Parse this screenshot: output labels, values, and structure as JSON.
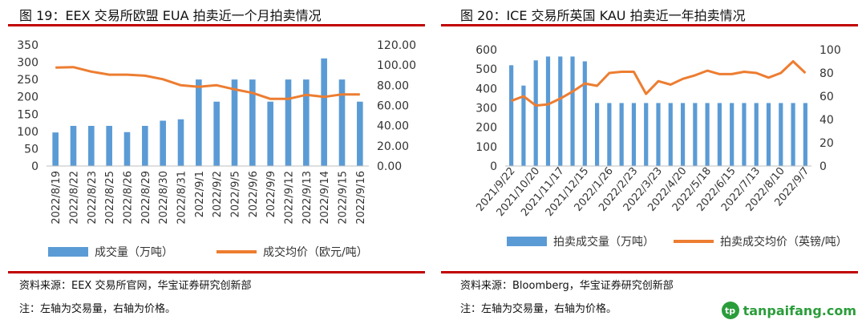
{
  "left": {
    "figure_title": "图 19：EEX 交易所欧盟 EUA 拍卖近一个月拍卖情况",
    "source": "资料来源：EEX 交易所官网，华宝证券研究创新部",
    "note": "注：左轴为交易量，右轴为价格。"
  },
  "right": {
    "figure_title": "图 20：ICE 交易所英国 KAU 拍卖近一年拍卖情况",
    "source": "资料来源：Bloomberg，华宝证券研究创新部",
    "note": "注：左轴为交易量，右轴为价格。"
  },
  "watermark": {
    "logo_text": "tp",
    "text": "tanpaifang.com"
  },
  "colors": {
    "bar": "#5b9bd5",
    "line": "#ed7d31",
    "rule": "#c00000"
  },
  "chart_data": [
    {
      "type": "bar+line",
      "title": "",
      "categories": [
        "2022/8/19",
        "2022/8/22",
        "2022/8/23",
        "2022/8/25",
        "2022/8/26",
        "2022/8/29",
        "2022/8/30",
        "2022/8/31",
        "2022/9/1",
        "2022/9/2",
        "2022/9/5",
        "2022/9/6",
        "2022/9/9",
        "2022/9/12",
        "2022/9/13",
        "2022/9/14",
        "2022/9/15",
        "2022/9/16"
      ],
      "series": [
        {
          "name": "成交量（万吨）",
          "type": "bar",
          "axis": "left",
          "values": [
            97,
            116,
            116,
            116,
            98,
            116,
            131,
            135,
            250,
            186,
            250,
            250,
            186,
            250,
            250,
            311,
            250,
            186
          ]
        },
        {
          "name": "成交均价（欧元/吨）",
          "type": "line",
          "axis": "right",
          "values": [
            97.5,
            98.0,
            93.5,
            90.5,
            90.5,
            89.5,
            86.0,
            80.0,
            78.5,
            80.0,
            76.0,
            72.5,
            66.5,
            66.5,
            70.5,
            68.5,
            71.0,
            71.0
          ]
        }
      ],
      "yleft": {
        "min": 0,
        "max": 350,
        "step": 50,
        "ticks": [
          "0",
          "50",
          "100",
          "150",
          "200",
          "250",
          "300",
          "350"
        ]
      },
      "yright": {
        "min": 0,
        "max": 120,
        "step": 20,
        "ticks": [
          "0.00",
          "20.00",
          "40.00",
          "60.00",
          "80.00",
          "100.00",
          "120.00"
        ]
      },
      "legend_position": "bottom"
    },
    {
      "type": "bar+line",
      "title": "",
      "categories": [
        "2021/9/22",
        "2021/10/6",
        "2021/10/20",
        "2021/11/3",
        "2021/11/17",
        "2021/12/1",
        "2021/12/15",
        "2022/1/12",
        "2022/1/26",
        "2022/2/9",
        "2022/2/23",
        "2022/3/9",
        "2022/3/23",
        "2022/4/6",
        "2022/4/20",
        "2022/5/4",
        "2022/5/18",
        "2022/6/1",
        "2022/6/15",
        "2022/6/29",
        "2022/7/13",
        "2022/7/27",
        "2022/8/10",
        "2022/8/24",
        "2022/9/7"
      ],
      "category_labels_shown": [
        "2021/9/22",
        "2021/10/20",
        "2021/11/17",
        "2021/12/15",
        "2022/1/26",
        "2022/2/23",
        "2022/3/23",
        "2022/4/20",
        "2022/5/18",
        "2022/6/15",
        "2022/7/13",
        "2022/8/10",
        "2022/9/7"
      ],
      "series": [
        {
          "name": "拍卖成交量（万吨）",
          "type": "bar",
          "axis": "left",
          "values": [
            520,
            415,
            545,
            565,
            565,
            565,
            540,
            325,
            325,
            325,
            325,
            325,
            325,
            325,
            325,
            325,
            325,
            325,
            325,
            325,
            325,
            325,
            325,
            325,
            325
          ]
        },
        {
          "name": "拍卖成交均价（英镑/吨）",
          "type": "line",
          "axis": "right",
          "values": [
            56,
            60,
            52,
            53,
            58,
            64,
            71,
            69,
            80,
            81,
            81,
            62,
            73,
            70,
            75,
            78,
            82,
            79,
            79,
            81,
            80,
            76,
            80,
            90,
            80
          ]
        }
      ],
      "yleft": {
        "min": 0,
        "max": 600,
        "step": 100,
        "ticks": [
          "0",
          "100",
          "200",
          "300",
          "400",
          "500",
          "600"
        ]
      },
      "yright": {
        "min": 0,
        "max": 100,
        "step": 20,
        "ticks": [
          "0",
          "20",
          "40",
          "60",
          "80",
          "100"
        ]
      },
      "legend_position": "bottom"
    }
  ]
}
